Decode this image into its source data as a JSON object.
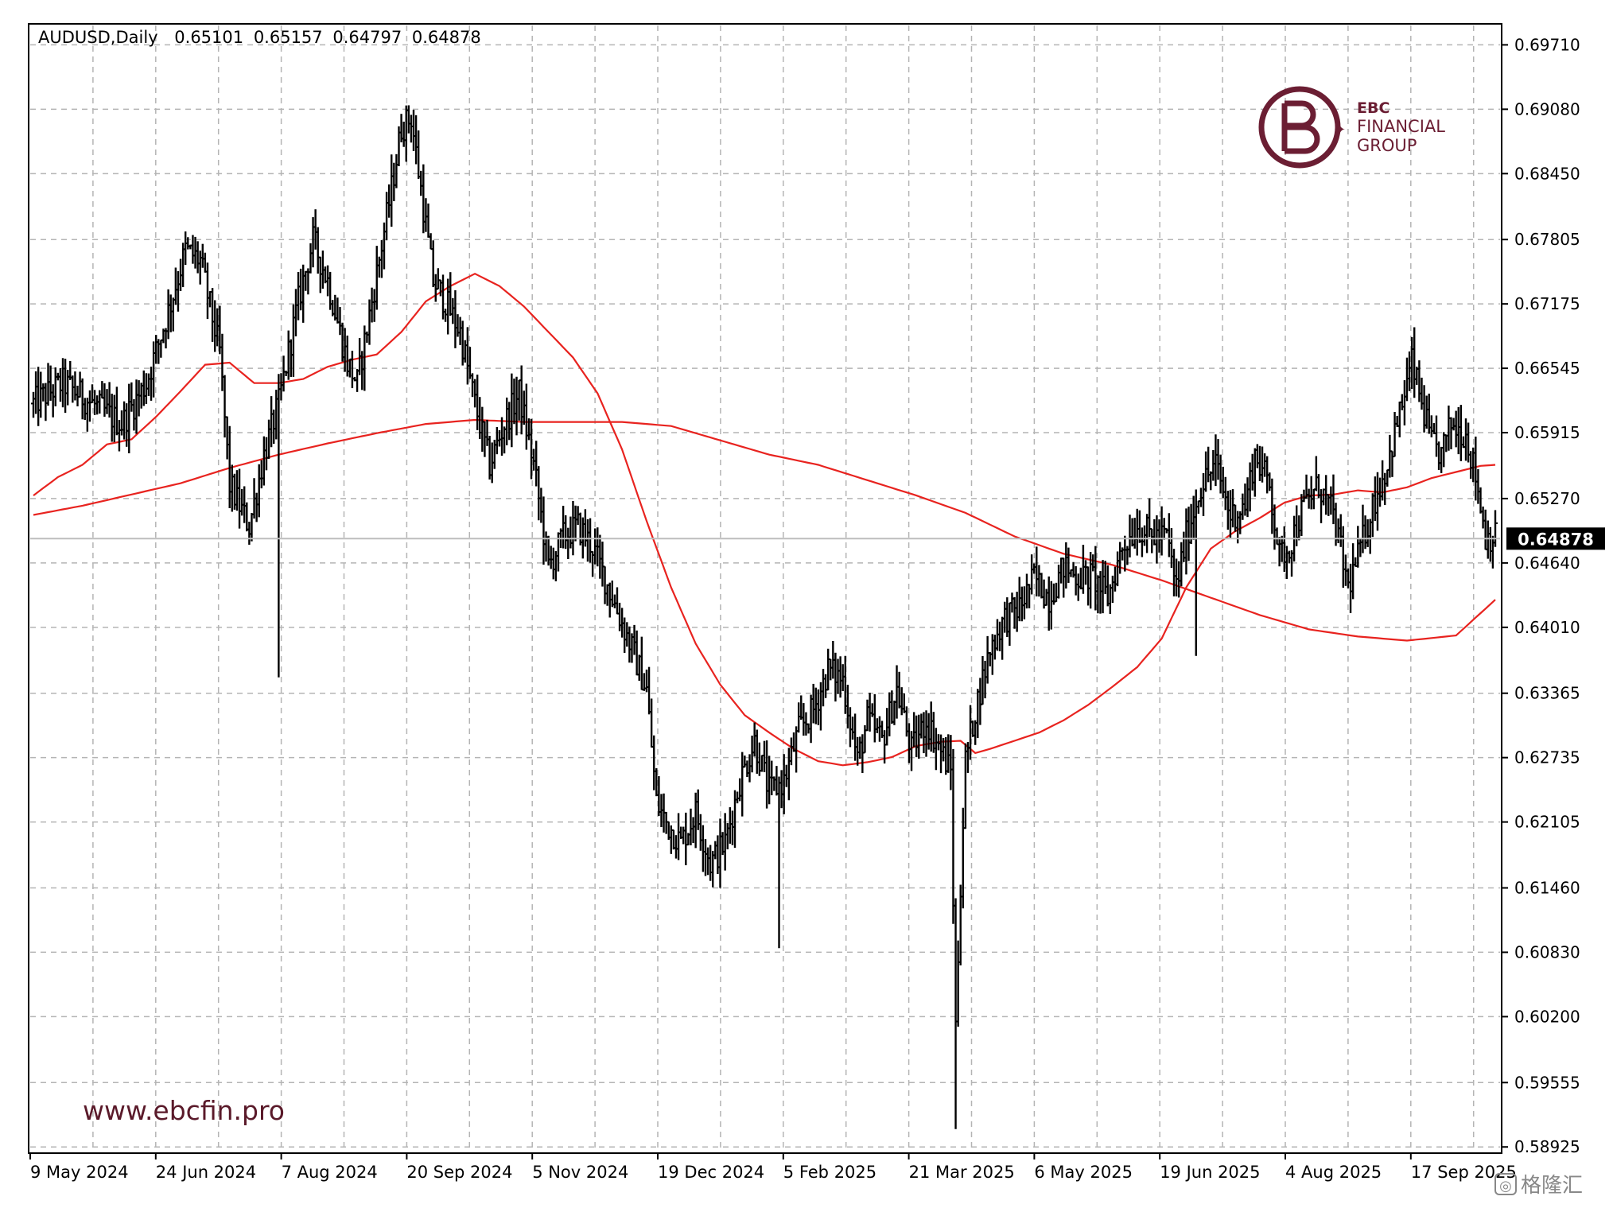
{
  "chart_data": {
    "type": "ohlc",
    "header": {
      "symbol": "AUDUSD,Daily",
      "open": "0.65101",
      "high": "0.65157",
      "low": "0.64797",
      "close": "0.64878"
    },
    "current_price_label": "0.64878",
    "current_price": 0.64878,
    "ylim": [
      0.5888,
      0.699
    ],
    "y_ticks": [
      "0.69710",
      "0.69080",
      "0.68450",
      "0.67805",
      "0.67175",
      "0.66545",
      "0.65915",
      "0.65270",
      "0.64640",
      "0.64010",
      "0.63365",
      "0.62735",
      "0.62105",
      "0.61460",
      "0.60830",
      "0.60200",
      "0.59555",
      "0.58925"
    ],
    "x_labels": [
      "9 May 2024",
      "24 Jun 2024",
      "7 Aug 2024",
      "20 Sep 2024",
      "5 Nov 2024",
      "19 Dec 2024",
      "5 Feb 2025",
      "21 Mar 2025",
      "6 May 2025",
      "19 Jun 2025",
      "4 Aug 2025",
      "17 Sep 2025"
    ],
    "grid": true,
    "colors": {
      "bars": "#000000",
      "ma": "#e8231f",
      "grid": "#b4b4b4",
      "price_line": "#bdbdbd",
      "brand": "#6b1e33"
    },
    "price_keypoints": [
      [
        0,
        0.662
      ],
      [
        12,
        0.664
      ],
      [
        24,
        0.662
      ],
      [
        36,
        0.66
      ],
      [
        46,
        0.664
      ],
      [
        55,
        0.671
      ],
      [
        62,
        0.677
      ],
      [
        68,
        0.676
      ],
      [
        76,
        0.667
      ],
      [
        80,
        0.654
      ],
      [
        84,
        0.652
      ],
      [
        88,
        0.65
      ],
      [
        94,
        0.657
      ],
      [
        100,
        0.662
      ],
      [
        108,
        0.672
      ],
      [
        114,
        0.678
      ],
      [
        120,
        0.674
      ],
      [
        128,
        0.666
      ],
      [
        132,
        0.664
      ],
      [
        138,
        0.672
      ],
      [
        146,
        0.683
      ],
      [
        150,
        0.689
      ],
      [
        154,
        0.69
      ],
      [
        158,
        0.683
      ],
      [
        163,
        0.674
      ],
      [
        168,
        0.672
      ],
      [
        174,
        0.669
      ],
      [
        180,
        0.662
      ],
      [
        186,
        0.656
      ],
      [
        192,
        0.66
      ],
      [
        198,
        0.663
      ],
      [
        204,
        0.656
      ],
      [
        210,
        0.646
      ],
      [
        216,
        0.649
      ],
      [
        222,
        0.65
      ],
      [
        228,
        0.648
      ],
      [
        236,
        0.643
      ],
      [
        244,
        0.638
      ],
      [
        250,
        0.634
      ],
      [
        254,
        0.623
      ],
      [
        258,
        0.621
      ],
      [
        264,
        0.619
      ],
      [
        270,
        0.622
      ],
      [
        276,
        0.617
      ],
      [
        282,
        0.619
      ],
      [
        288,
        0.625
      ],
      [
        294,
        0.629
      ],
      [
        300,
        0.624
      ],
      [
        306,
        0.625
      ],
      [
        312,
        0.63
      ],
      [
        318,
        0.632
      ],
      [
        324,
        0.636
      ],
      [
        330,
        0.635
      ],
      [
        336,
        0.627
      ],
      [
        340,
        0.631
      ],
      [
        346,
        0.629
      ],
      [
        352,
        0.634
      ],
      [
        358,
        0.628
      ],
      [
        364,
        0.631
      ],
      [
        370,
        0.628
      ],
      [
        374,
        0.626
      ],
      [
        376,
        0.601
      ],
      [
        378,
        0.615
      ],
      [
        380,
        0.627
      ],
      [
        384,
        0.632
      ],
      [
        390,
        0.638
      ],
      [
        396,
        0.641
      ],
      [
        402,
        0.642
      ],
      [
        408,
        0.645
      ],
      [
        414,
        0.643
      ],
      [
        420,
        0.646
      ],
      [
        426,
        0.645
      ],
      [
        432,
        0.645
      ],
      [
        438,
        0.643
      ],
      [
        444,
        0.648
      ],
      [
        450,
        0.65
      ],
      [
        456,
        0.649
      ],
      [
        462,
        0.649
      ],
      [
        466,
        0.644
      ],
      [
        470,
        0.649
      ],
      [
        476,
        0.654
      ],
      [
        482,
        0.656
      ],
      [
        488,
        0.651
      ],
      [
        494,
        0.652
      ],
      [
        498,
        0.657
      ],
      [
        504,
        0.654
      ],
      [
        508,
        0.647
      ],
      [
        512,
        0.648
      ],
      [
        518,
        0.652
      ],
      [
        524,
        0.654
      ],
      [
        530,
        0.651
      ],
      [
        536,
        0.644
      ],
      [
        540,
        0.647
      ],
      [
        546,
        0.652
      ],
      [
        552,
        0.656
      ],
      [
        558,
        0.662
      ],
      [
        562,
        0.666
      ],
      [
        566,
        0.662
      ],
      [
        570,
        0.658
      ],
      [
        574,
        0.657
      ],
      [
        578,
        0.66
      ],
      [
        584,
        0.659
      ],
      [
        588,
        0.655
      ],
      [
        592,
        0.649
      ],
      [
        596,
        0.649
      ]
    ],
    "ma_fast": [
      [
        0,
        0.653
      ],
      [
        10,
        0.6548
      ],
      [
        20,
        0.656
      ],
      [
        30,
        0.658
      ],
      [
        40,
        0.6585
      ],
      [
        50,
        0.6607
      ],
      [
        60,
        0.6632
      ],
      [
        70,
        0.6658
      ],
      [
        80,
        0.666
      ],
      [
        90,
        0.664
      ],
      [
        100,
        0.664
      ],
      [
        110,
        0.6644
      ],
      [
        120,
        0.6656
      ],
      [
        130,
        0.6663
      ],
      [
        140,
        0.6668
      ],
      [
        150,
        0.669
      ],
      [
        160,
        0.672
      ],
      [
        170,
        0.6735
      ],
      [
        180,
        0.6747
      ],
      [
        190,
        0.6735
      ],
      [
        200,
        0.6715
      ],
      [
        210,
        0.669
      ],
      [
        220,
        0.6665
      ],
      [
        230,
        0.663
      ],
      [
        240,
        0.6575
      ],
      [
        250,
        0.6505
      ],
      [
        260,
        0.644
      ],
      [
        270,
        0.6385
      ],
      [
        280,
        0.6345
      ],
      [
        290,
        0.6315
      ],
      [
        300,
        0.6298
      ],
      [
        310,
        0.6282
      ],
      [
        320,
        0.627
      ],
      [
        330,
        0.6266
      ],
      [
        340,
        0.6269
      ],
      [
        350,
        0.6274
      ],
      [
        360,
        0.6285
      ],
      [
        370,
        0.6289
      ],
      [
        378,
        0.629
      ],
      [
        384,
        0.6278
      ],
      [
        390,
        0.6282
      ],
      [
        400,
        0.629
      ],
      [
        410,
        0.6298
      ],
      [
        420,
        0.631
      ],
      [
        430,
        0.6325
      ],
      [
        440,
        0.6343
      ],
      [
        450,
        0.6362
      ],
      [
        460,
        0.639
      ],
      [
        470,
        0.644
      ],
      [
        480,
        0.6478
      ],
      [
        490,
        0.6495
      ],
      [
        500,
        0.6508
      ],
      [
        510,
        0.6523
      ],
      [
        520,
        0.653
      ],
      [
        530,
        0.6531
      ],
      [
        540,
        0.6535
      ],
      [
        550,
        0.6533
      ],
      [
        560,
        0.6538
      ],
      [
        570,
        0.6547
      ],
      [
        580,
        0.6553
      ],
      [
        590,
        0.6559
      ],
      [
        596,
        0.656
      ]
    ],
    "ma_slow": [
      [
        0,
        0.6511
      ],
      [
        20,
        0.652
      ],
      [
        40,
        0.6531
      ],
      [
        60,
        0.6542
      ],
      [
        80,
        0.6557
      ],
      [
        100,
        0.657
      ],
      [
        120,
        0.6581
      ],
      [
        140,
        0.6591
      ],
      [
        160,
        0.66
      ],
      [
        180,
        0.6604
      ],
      [
        200,
        0.6602
      ],
      [
        220,
        0.6602
      ],
      [
        240,
        0.6602
      ],
      [
        260,
        0.6598
      ],
      [
        280,
        0.6584
      ],
      [
        300,
        0.657
      ],
      [
        320,
        0.656
      ],
      [
        340,
        0.6545
      ],
      [
        360,
        0.653
      ],
      [
        380,
        0.6513
      ],
      [
        400,
        0.649
      ],
      [
        420,
        0.6473
      ],
      [
        440,
        0.6462
      ],
      [
        460,
        0.6447
      ],
      [
        480,
        0.643
      ],
      [
        500,
        0.6413
      ],
      [
        520,
        0.6399
      ],
      [
        540,
        0.6392
      ],
      [
        560,
        0.6388
      ],
      [
        580,
        0.6393
      ],
      [
        596,
        0.6428
      ]
    ],
    "spikes": [
      {
        "x": 100,
        "low": 0.6352
      },
      {
        "x": 304,
        "low": 0.6087
      },
      {
        "x": 376,
        "low": 0.591
      },
      {
        "x": 474,
        "low": 0.6373
      }
    ],
    "bars_count": 597
  },
  "watermark": {
    "brand_line1": "EBC",
    "brand_line2": "FINANCIAL",
    "brand_line3": "GROUP",
    "url": "www.ebcfin.pro",
    "corner_text": "格隆汇"
  }
}
